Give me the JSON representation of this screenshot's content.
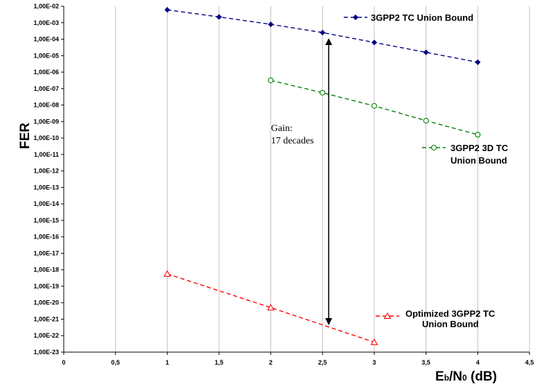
{
  "chart_data": {
    "type": "line",
    "xlabel_main": "E",
    "xlabel_sub1": "b",
    "xlabel_mid": "/N",
    "xlabel_sub2": "0",
    "xlabel_end": " (dB)",
    "ylabel": "FER",
    "xlim": [
      0,
      4.5
    ],
    "ylim_exp": [
      -23,
      -2
    ],
    "yscale": "log",
    "grid": "vertical",
    "x_ticks": [
      "0",
      "0,5",
      "1",
      "1,5",
      "2",
      "2,5",
      "3",
      "3,5",
      "4",
      "4,5"
    ],
    "y_ticks": [
      "1,00E-02",
      "1,00E-03",
      "1,00E-04",
      "1,00E-05",
      "1,00E-06",
      "1,00E-07",
      "1,00E-08",
      "1,00E-09",
      "1,00E-10",
      "1,00E-11",
      "1,00E-12",
      "1,00E-13",
      "1,00E-14",
      "1,00E-15",
      "1,00E-16",
      "1,00E-17",
      "1,00E-18",
      "1,00E-19",
      "1,00E-20",
      "1,00E-21",
      "1,00E-22",
      "1,00E-23"
    ],
    "series": [
      {
        "name": "3GPP2 TC Union Bound",
        "legend_lines": [
          "3GPP2 TC Union Bound"
        ],
        "color": "#000080",
        "marker": "diamond",
        "x": [
          1,
          1.5,
          2,
          2.5,
          3,
          3.5,
          4
        ],
        "y_exp": [
          -2.22,
          -2.65,
          -3.1,
          -3.6,
          -4.2,
          -4.8,
          -5.4
        ]
      },
      {
        "name": "3GPP2 3D TC Union Bound",
        "legend_lines": [
          "3GPP2 3D TC",
          "Union Bound"
        ],
        "color": "#008000",
        "marker": "circle",
        "x": [
          2,
          2.5,
          3,
          3.5,
          4
        ],
        "y_exp": [
          -6.5,
          -7.25,
          -8.05,
          -8.95,
          -9.8
        ]
      },
      {
        "name": "Optimized 3GPP2 TC Union Bound",
        "legend_lines": [
          "Optimized 3GPP2  TC",
          "Union Bound"
        ],
        "color": "#ff0000",
        "marker": "triangle",
        "x": [
          1,
          2,
          3
        ],
        "y_exp": [
          -18.25,
          -20.3,
          -22.4
        ]
      }
    ],
    "annotation": {
      "lines": [
        "Gain:",
        "17 decades"
      ],
      "arrow_x": 2.56,
      "arrow_y_exp": [
        -4.15,
        -21.15
      ]
    }
  }
}
